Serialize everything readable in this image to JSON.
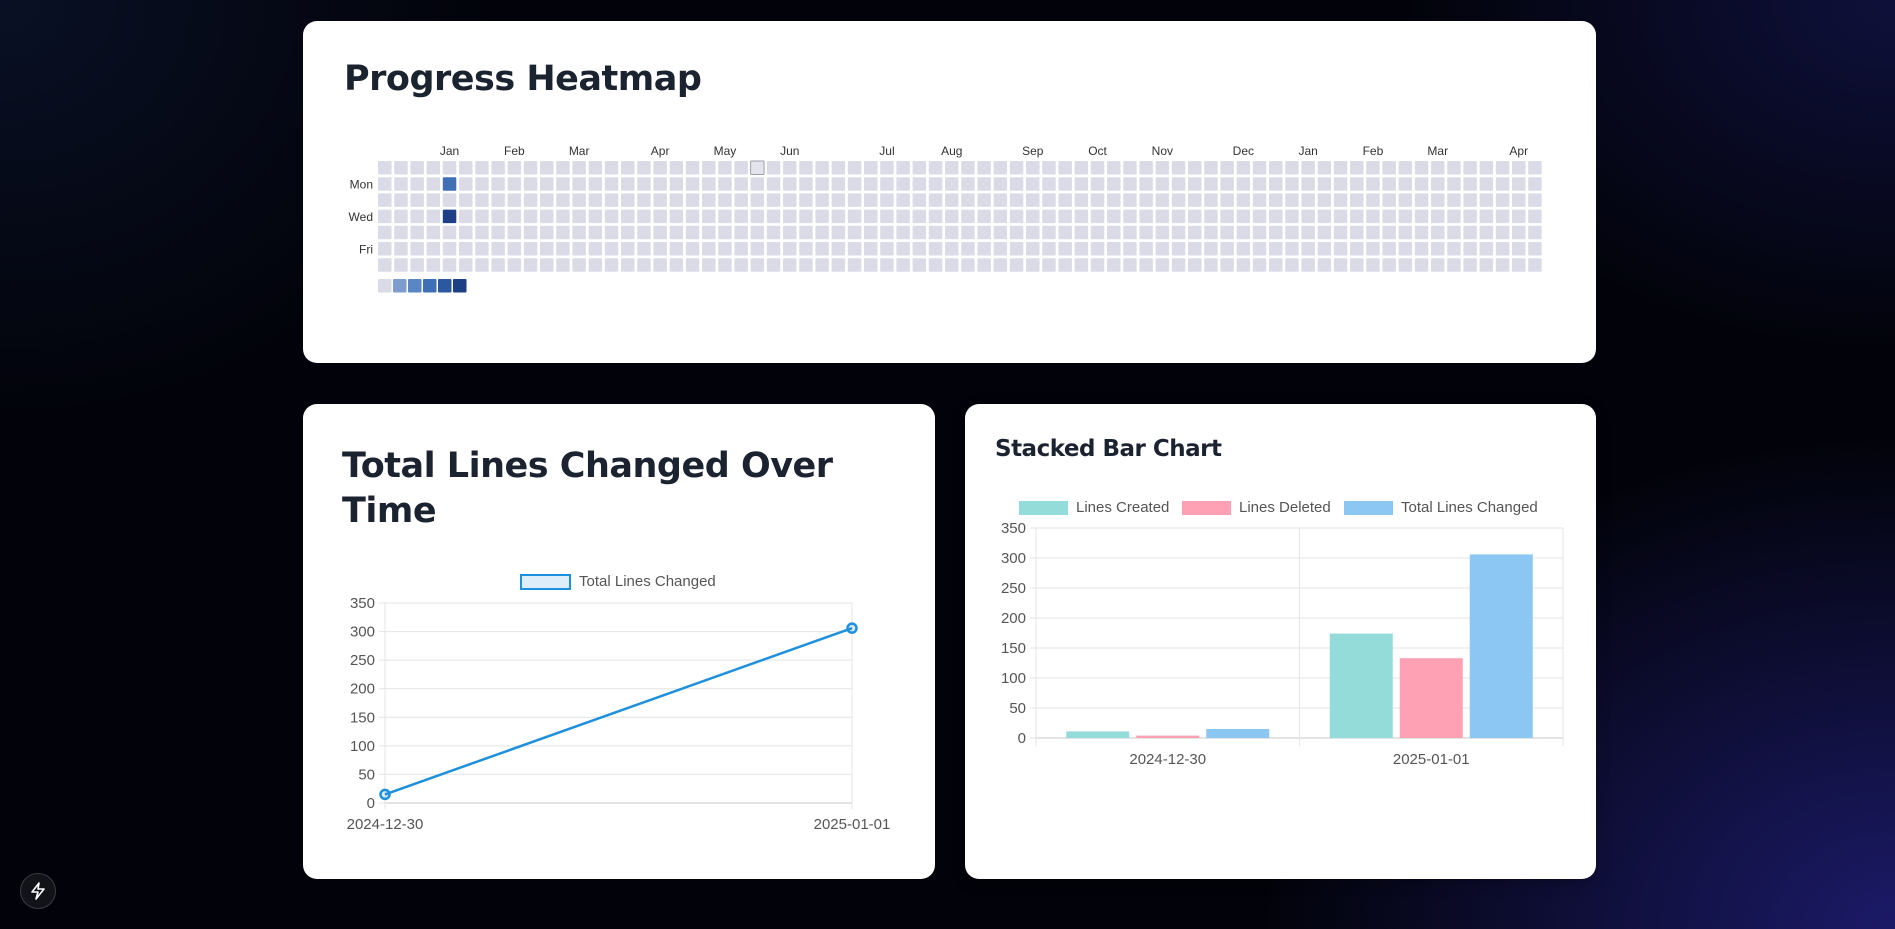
{
  "heatmap": {
    "title": "Progress Heatmap",
    "months": [
      "Jan",
      "Feb",
      "Mar",
      "Apr",
      "May",
      "Jun",
      "Jul",
      "Aug",
      "Sep",
      "Oct",
      "Nov",
      "Dec",
      "Jan",
      "Feb",
      "Mar",
      "Apr"
    ],
    "weekday_labels": [
      "Mon",
      "Wed",
      "Fri"
    ],
    "columns": 72,
    "rows": 7,
    "active_cells": [
      {
        "col": 4,
        "row": 1,
        "level": 3
      },
      {
        "col": 4,
        "row": 3,
        "level": 5
      }
    ],
    "today": {
      "col": 23,
      "row": 0
    },
    "legend_levels": 6,
    "colors": [
      "#dadbe7",
      "#7f9ccf",
      "#5a86c4",
      "#3f6fb5",
      "#2c58a0",
      "#1c3f86"
    ]
  },
  "line_chart": {
    "title": "Total Lines Changed Over Time",
    "chart_data": {
      "type": "line",
      "x": [
        "2024-12-30",
        "2025-01-01"
      ],
      "series": [
        {
          "name": "Total Lines Changed",
          "values": [
            15,
            306
          ]
        }
      ],
      "ylim": [
        0,
        350
      ],
      "yticks": [
        0,
        50,
        100,
        150,
        200,
        250,
        300,
        350
      ],
      "grid": true,
      "legend": "top",
      "color": "#1e90dd"
    }
  },
  "bar_chart": {
    "title": "Stacked Bar Chart",
    "chart_data": {
      "type": "bar",
      "categories": [
        "2024-12-30",
        "2025-01-01"
      ],
      "series": [
        {
          "name": "Lines Created",
          "values": [
            11,
            174
          ],
          "color": "#94dcd9"
        },
        {
          "name": "Lines Deleted",
          "values": [
            4,
            133
          ],
          "color": "#ffa1b5"
        },
        {
          "name": "Total Lines Changed",
          "values": [
            15,
            306
          ],
          "color": "#8cc6f2"
        }
      ],
      "ylim": [
        0,
        350
      ],
      "yticks": [
        0,
        50,
        100,
        150,
        200,
        250,
        300,
        350
      ],
      "grid": true,
      "legend": "top"
    }
  },
  "fab": {
    "icon": "lightning-bolt-icon"
  }
}
